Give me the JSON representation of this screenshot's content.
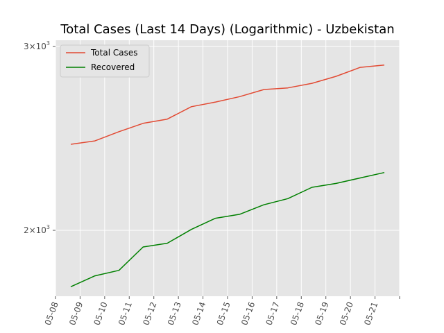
{
  "chart_data": {
    "type": "line",
    "title": "Total Cases (Last 14 Days) (Logarithmic) - Uzbekistan",
    "xlabel": "",
    "ylabel": "",
    "yscale": "log",
    "grid": true,
    "legend_position": "top-left",
    "x_tick_labels": [
      "05-08",
      "05-09",
      "05-10",
      "05-11",
      "05-12",
      "05-13",
      "05-14",
      "05-15",
      "05-16",
      "05-17",
      "05-18",
      "05-19",
      "05-20",
      "05-21"
    ],
    "y_tick_labels": [
      {
        "value": 2000,
        "base": "2",
        "exp": "3"
      },
      {
        "value": 3000,
        "base": "3",
        "exp": "3"
      }
    ],
    "x": [
      "05-08",
      "05-09",
      "05-10",
      "05-11",
      "05-12",
      "05-13",
      "05-14",
      "05-15",
      "05-16",
      "05-17",
      "05-18",
      "05-19",
      "05-20",
      "05-21"
    ],
    "series": [
      {
        "name": "Total Cases",
        "color": "#E24A33",
        "values": [
          2418,
          2436,
          2486,
          2532,
          2556,
          2627,
          2654,
          2686,
          2728,
          2738,
          2766,
          2809,
          2865,
          2880
        ]
      },
      {
        "name": "Recovered",
        "color": "#008000",
        "values": [
          1766,
          1809,
          1831,
          1928,
          1944,
          2004,
          2054,
          2072,
          2116,
          2145,
          2199,
          2218,
          2245,
          2272
        ]
      }
    ]
  }
}
